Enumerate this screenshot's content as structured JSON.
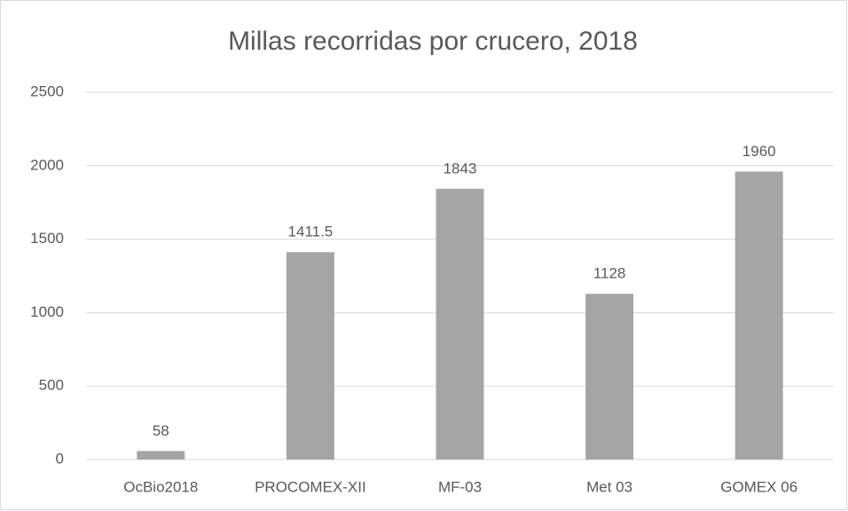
{
  "chart_data": {
    "type": "bar",
    "title": "Millas recorridas por crucero, 2018",
    "categories": [
      "OcBio2018",
      "PROCOMEX-XII",
      "MF-03",
      "Met 03",
      "GOMEX 06"
    ],
    "values": [
      58,
      1411.5,
      1843,
      1128,
      1960
    ],
    "color": "#a5a5a5",
    "ylim": [
      0,
      2500
    ],
    "yticks": [
      0,
      500,
      1000,
      1500,
      2000,
      2500
    ],
    "grid": true,
    "data_labels": true
  }
}
